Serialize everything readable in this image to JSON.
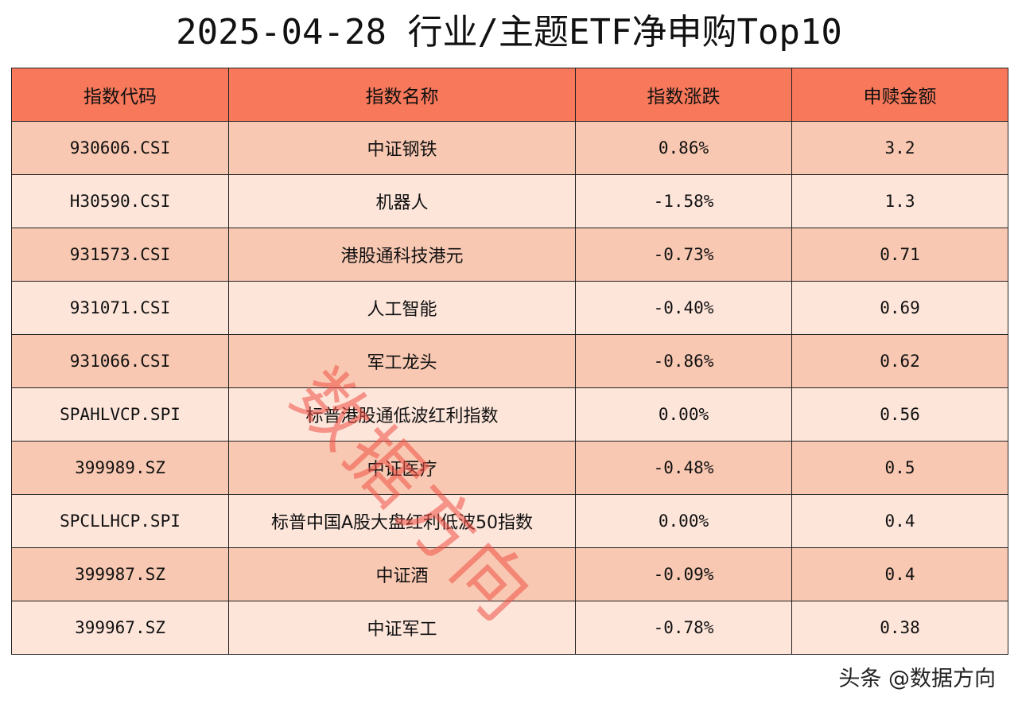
{
  "title": "2025-04-28 行业/主题ETF净申购Top10",
  "table": {
    "headers": [
      "指数代码",
      "指数名称",
      "指数涨跌",
      "申赎金额"
    ],
    "rows": [
      {
        "code": "930606.CSI",
        "name": "中证钢铁",
        "change": "0.86%",
        "amount": "3.2"
      },
      {
        "code": "H30590.CSI",
        "name": "机器人",
        "change": "-1.58%",
        "amount": "1.3"
      },
      {
        "code": "931573.CSI",
        "name": "港股通科技港元",
        "change": "-0.73%",
        "amount": "0.71"
      },
      {
        "code": "931071.CSI",
        "name": "人工智能",
        "change": "-0.40%",
        "amount": "0.69"
      },
      {
        "code": "931066.CSI",
        "name": "军工龙头",
        "change": "-0.86%",
        "amount": "0.62"
      },
      {
        "code": "SPAHLVCP.SPI",
        "name": "标普港股通低波红利指数",
        "change": "0.00%",
        "amount": "0.56"
      },
      {
        "code": "399989.SZ",
        "name": "中证医疗",
        "change": "-0.48%",
        "amount": "0.5"
      },
      {
        "code": "SPCLLHCP.SPI",
        "name": "标普中国A股大盘红利低波50指数",
        "change": "0.00%",
        "amount": "0.4"
      },
      {
        "code": "399987.SZ",
        "name": "中证酒",
        "change": "-0.09%",
        "amount": "0.4"
      },
      {
        "code": "399967.SZ",
        "name": "中证军工",
        "change": "-0.78%",
        "amount": "0.38"
      }
    ]
  },
  "watermark": "数据方向",
  "footer": {
    "brand": "头条 @数据方向"
  },
  "colors": {
    "header_bg": "#f7785a",
    "row_odd_bg": "#f8c8b2",
    "row_even_bg": "#fde5da",
    "watermark": "#f05046"
  }
}
